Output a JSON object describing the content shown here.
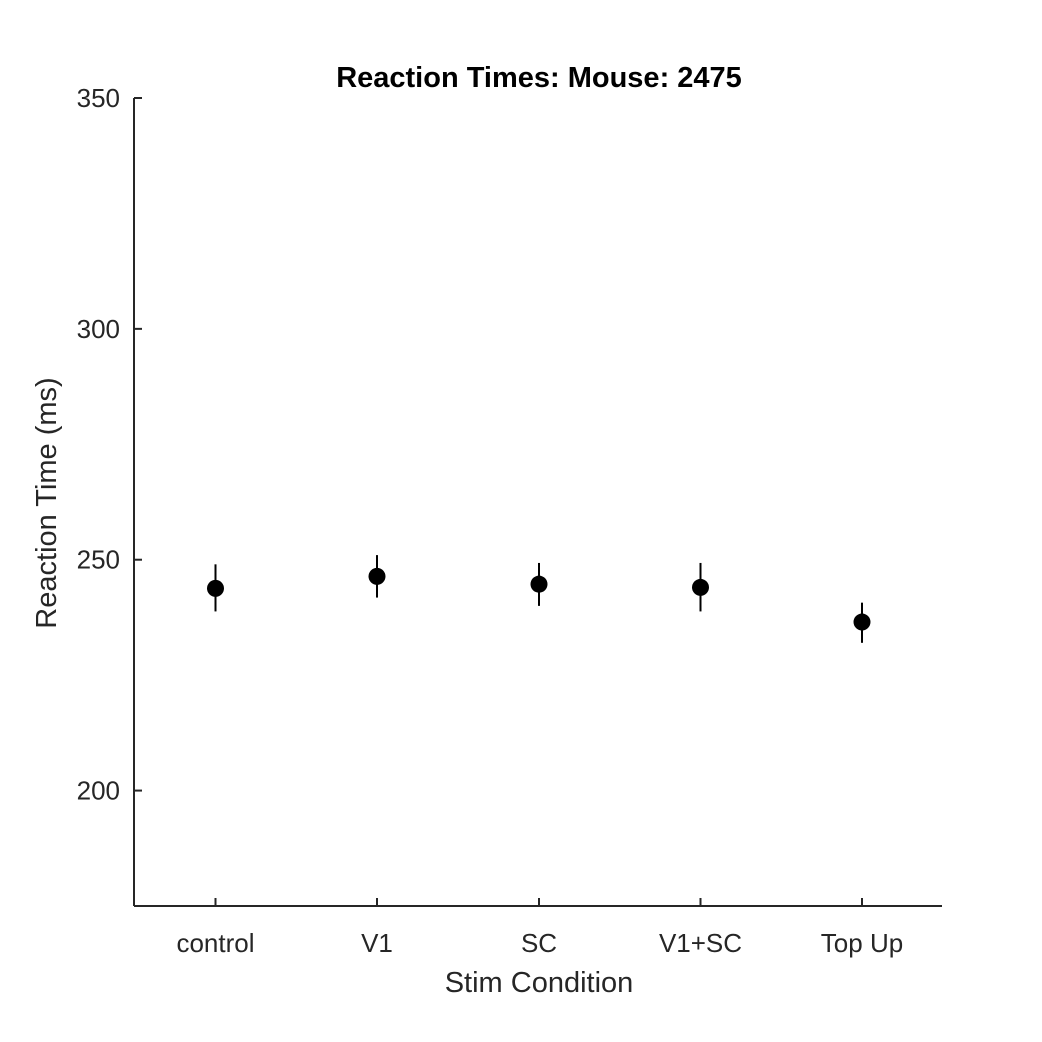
{
  "chart_data": {
    "type": "scatter",
    "title": "Reaction Times: Mouse: 2475",
    "xlabel": "Stim Condition",
    "ylabel": "Reaction Time (ms)",
    "categories": [
      "control",
      "V1",
      "SC",
      "V1+SC",
      "Top Up"
    ],
    "values": [
      243.8,
      246.4,
      244.7,
      244.0,
      236.5
    ],
    "error_low": [
      238.8,
      241.8,
      240.0,
      238.8,
      232.0
    ],
    "error_high": [
      249.0,
      251.0,
      249.3,
      249.3,
      240.7
    ],
    "ylim": [
      175,
      350
    ],
    "yticks": [
      200,
      250,
      300,
      350
    ],
    "ytick_labels": [
      "200",
      "250",
      "300",
      "350"
    ],
    "grid": false,
    "legend": "none",
    "marker_color": "#000000",
    "axis_color": "#262626"
  }
}
